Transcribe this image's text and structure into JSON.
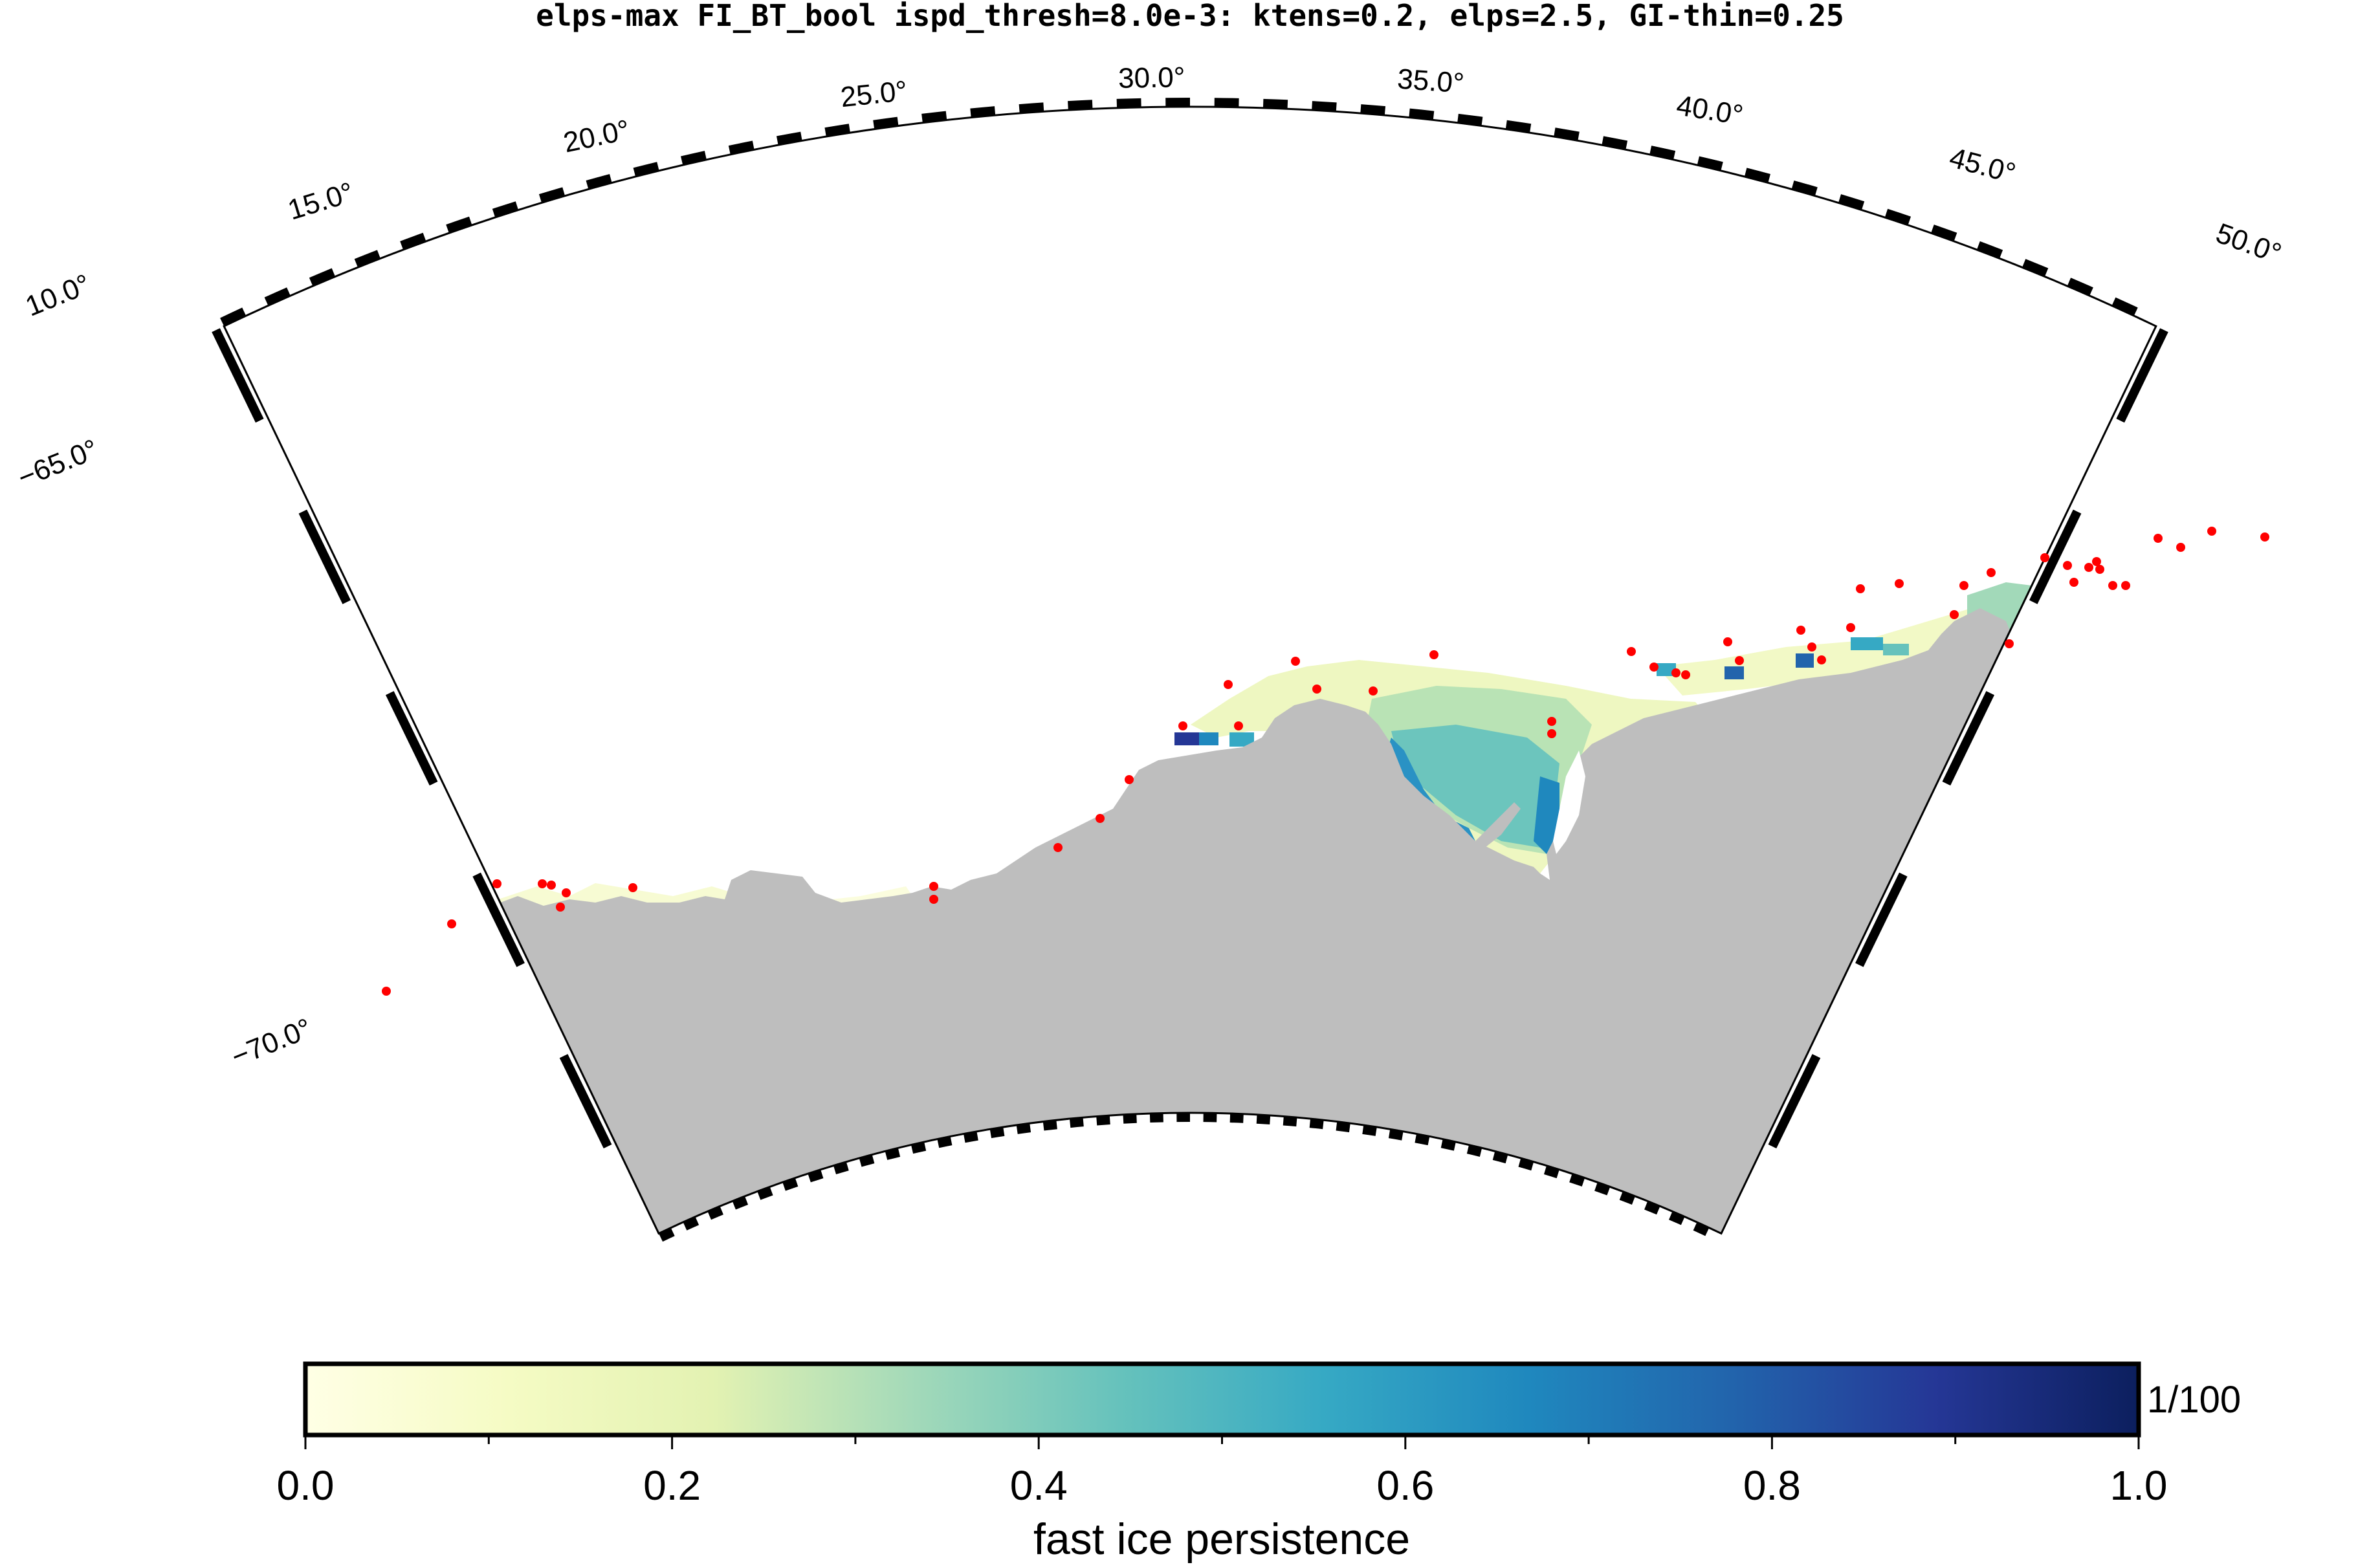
{
  "title": "elps-max FI_BT_bool ispd_thresh=8.0e-3: ktens=0.2, elps=2.5, GI-thin=0.25",
  "map": {
    "longitude_labels": [
      "10.0°",
      "15.0°",
      "20.0°",
      "25.0°",
      "30.0°",
      "35.0°",
      "40.0°",
      "45.0°",
      "50.0°"
    ],
    "latitude_labels": [
      "−65.0°",
      "−70.0°"
    ],
    "land_color": "#bebebe",
    "marker_color": "#ff0000"
  },
  "colorbar": {
    "ticks": [
      "0.0",
      "0.2",
      "0.4",
      "0.6",
      "0.8",
      "1.0"
    ],
    "range": [
      0.0,
      1.0
    ],
    "annotation": "1/100",
    "label": "fast ice persistence",
    "colormap_stops": [
      "#ffffe5",
      "#f5fbc4",
      "#e3f2b2",
      "#a2d9b9",
      "#66c2bc",
      "#36a9c4",
      "#1f88be",
      "#2264ac",
      "#253796",
      "#0c1f5e"
    ]
  }
}
